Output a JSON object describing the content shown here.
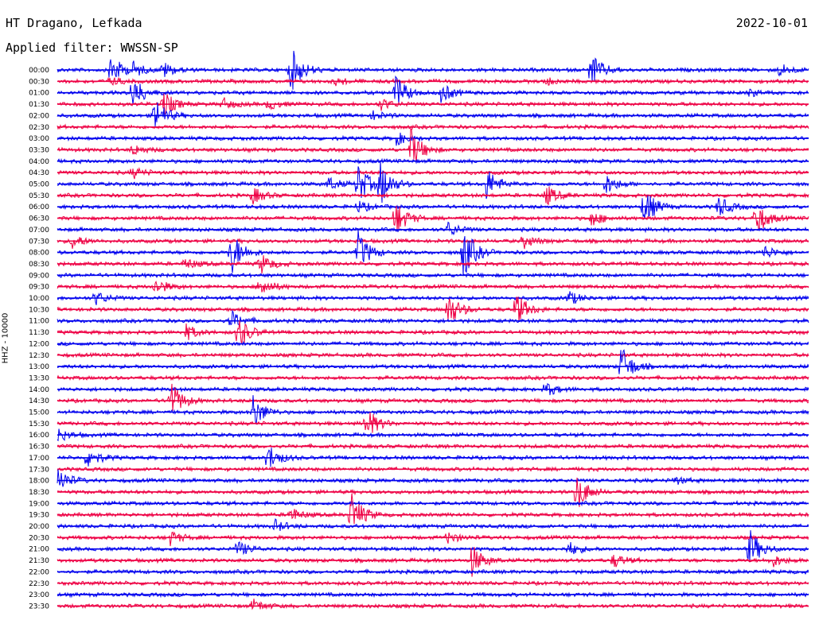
{
  "header": {
    "station": "HT Dragano, Lefkada",
    "date": "2022-10-01",
    "filter": "Applied filter: WWSSN-SP"
  },
  "colors": {
    "even_hour_trace": "#0000ee",
    "half_hour_trace": "#ee0044",
    "text": "#000000"
  },
  "chart_data": {
    "type": "line",
    "description_kind": "helicorder",
    "ylabel": "HHZ - 10000",
    "row_labels": [
      "00:00",
      "00:30",
      "01:00",
      "01:30",
      "02:00",
      "02:30",
      "03:00",
      "03:30",
      "04:00",
      "04:30",
      "05:00",
      "05:30",
      "06:00",
      "06:30",
      "07:00",
      "07:30",
      "08:00",
      "08:30",
      "09:00",
      "09:30",
      "10:00",
      "10:30",
      "11:00",
      "11:30",
      "12:00",
      "12:30",
      "13:00",
      "13:30",
      "14:00",
      "14:30",
      "15:00",
      "15:30",
      "16:00",
      "16:30",
      "17:00",
      "17:30",
      "18:00",
      "18:30",
      "19:00",
      "19:30",
      "20:00",
      "20:30",
      "21:00",
      "21:30",
      "22:00",
      "22:30",
      "23:00",
      "23:30"
    ],
    "row_colors": [
      "blue",
      "red"
    ],
    "events": [
      {
        "row": 0,
        "pos": 0.07,
        "amp": 2.5
      },
      {
        "row": 0,
        "pos": 0.1,
        "amp": 1.0
      },
      {
        "row": 0,
        "pos": 0.14,
        "amp": 1.2
      },
      {
        "row": 0,
        "pos": 0.31,
        "amp": 3.5
      },
      {
        "row": 0,
        "pos": 0.71,
        "amp": 2.5
      },
      {
        "row": 0,
        "pos": 0.96,
        "amp": 1.0
      },
      {
        "row": 1,
        "pos": 0.07,
        "amp": 0.6
      },
      {
        "row": 1,
        "pos": 0.37,
        "amp": 0.5
      },
      {
        "row": 1,
        "pos": 0.65,
        "amp": 0.5
      },
      {
        "row": 2,
        "pos": 0.1,
        "amp": 2.5
      },
      {
        "row": 2,
        "pos": 0.45,
        "amp": 2.5
      },
      {
        "row": 2,
        "pos": 0.51,
        "amp": 1.5
      },
      {
        "row": 2,
        "pos": 0.92,
        "amp": 0.5
      },
      {
        "row": 3,
        "pos": 0.14,
        "amp": 2.0
      },
      {
        "row": 3,
        "pos": 0.22,
        "amp": 0.8
      },
      {
        "row": 3,
        "pos": 0.28,
        "amp": 0.8
      },
      {
        "row": 3,
        "pos": 0.43,
        "amp": 0.8
      },
      {
        "row": 4,
        "pos": 0.13,
        "amp": 2.5
      },
      {
        "row": 4,
        "pos": 0.42,
        "amp": 0.6
      },
      {
        "row": 6,
        "pos": 0.45,
        "amp": 1.0
      },
      {
        "row": 7,
        "pos": 0.1,
        "amp": 0.8
      },
      {
        "row": 7,
        "pos": 0.47,
        "amp": 3.0
      },
      {
        "row": 9,
        "pos": 0.1,
        "amp": 0.8
      },
      {
        "row": 10,
        "pos": 0.4,
        "amp": 3.0
      },
      {
        "row": 10,
        "pos": 0.43,
        "amp": 3.0
      },
      {
        "row": 10,
        "pos": 0.36,
        "amp": 1.0
      },
      {
        "row": 10,
        "pos": 0.57,
        "amp": 2.5
      },
      {
        "row": 10,
        "pos": 0.73,
        "amp": 1.5
      },
      {
        "row": 11,
        "pos": 0.26,
        "amp": 1.2
      },
      {
        "row": 11,
        "pos": 0.65,
        "amp": 1.5
      },
      {
        "row": 12,
        "pos": 0.4,
        "amp": 0.8
      },
      {
        "row": 12,
        "pos": 0.78,
        "amp": 3.0
      },
      {
        "row": 12,
        "pos": 0.88,
        "amp": 1.5
      },
      {
        "row": 13,
        "pos": 0.45,
        "amp": 2.5
      },
      {
        "row": 13,
        "pos": 0.71,
        "amp": 1.2
      },
      {
        "row": 13,
        "pos": 0.93,
        "amp": 2.5
      },
      {
        "row": 14,
        "pos": 0.52,
        "amp": 1.0
      },
      {
        "row": 15,
        "pos": 0.02,
        "amp": 1.0
      },
      {
        "row": 15,
        "pos": 0.62,
        "amp": 1.0
      },
      {
        "row": 16,
        "pos": 0.23,
        "amp": 3.5
      },
      {
        "row": 16,
        "pos": 0.4,
        "amp": 3.0
      },
      {
        "row": 16,
        "pos": 0.54,
        "amp": 4.0
      },
      {
        "row": 16,
        "pos": 0.94,
        "amp": 1.0
      },
      {
        "row": 17,
        "pos": 0.17,
        "amp": 0.8
      },
      {
        "row": 17,
        "pos": 0.27,
        "amp": 1.5
      },
      {
        "row": 19,
        "pos": 0.13,
        "amp": 1.2
      },
      {
        "row": 19,
        "pos": 0.27,
        "amp": 1.5
      },
      {
        "row": 20,
        "pos": 0.05,
        "amp": 1.0
      },
      {
        "row": 20,
        "pos": 0.68,
        "amp": 1.0
      },
      {
        "row": 21,
        "pos": 0.52,
        "amp": 2.5
      },
      {
        "row": 21,
        "pos": 0.61,
        "amp": 2.5
      },
      {
        "row": 22,
        "pos": 0.23,
        "amp": 1.5
      },
      {
        "row": 23,
        "pos": 0.17,
        "amp": 1.2
      },
      {
        "row": 23,
        "pos": 0.24,
        "amp": 2.5
      },
      {
        "row": 26,
        "pos": 0.75,
        "amp": 3.0
      },
      {
        "row": 28,
        "pos": 0.65,
        "amp": 1.0
      },
      {
        "row": 29,
        "pos": 0.15,
        "amp": 3.0
      },
      {
        "row": 30,
        "pos": 0.26,
        "amp": 2.5
      },
      {
        "row": 31,
        "pos": 0.41,
        "amp": 2.5
      },
      {
        "row": 32,
        "pos": 0.0,
        "amp": 1.0
      },
      {
        "row": 34,
        "pos": 0.04,
        "amp": 1.5
      },
      {
        "row": 34,
        "pos": 0.28,
        "amp": 2.0
      },
      {
        "row": 36,
        "pos": 0.0,
        "amp": 2.0
      },
      {
        "row": 36,
        "pos": 0.82,
        "amp": 0.6
      },
      {
        "row": 37,
        "pos": 0.69,
        "amp": 3.0
      },
      {
        "row": 39,
        "pos": 0.39,
        "amp": 3.5
      },
      {
        "row": 39,
        "pos": 0.31,
        "amp": 1.0
      },
      {
        "row": 40,
        "pos": 0.29,
        "amp": 0.8
      },
      {
        "row": 41,
        "pos": 0.15,
        "amp": 1.0
      },
      {
        "row": 41,
        "pos": 0.52,
        "amp": 0.8
      },
      {
        "row": 42,
        "pos": 0.24,
        "amp": 1.2
      },
      {
        "row": 42,
        "pos": 0.68,
        "amp": 1.0
      },
      {
        "row": 42,
        "pos": 0.92,
        "amp": 3.0
      },
      {
        "row": 43,
        "pos": 0.55,
        "amp": 2.5
      },
      {
        "row": 43,
        "pos": 0.74,
        "amp": 1.0
      },
      {
        "row": 43,
        "pos": 0.95,
        "amp": 1.0
      },
      {
        "row": 47,
        "pos": 0.26,
        "amp": 1.0
      }
    ]
  }
}
